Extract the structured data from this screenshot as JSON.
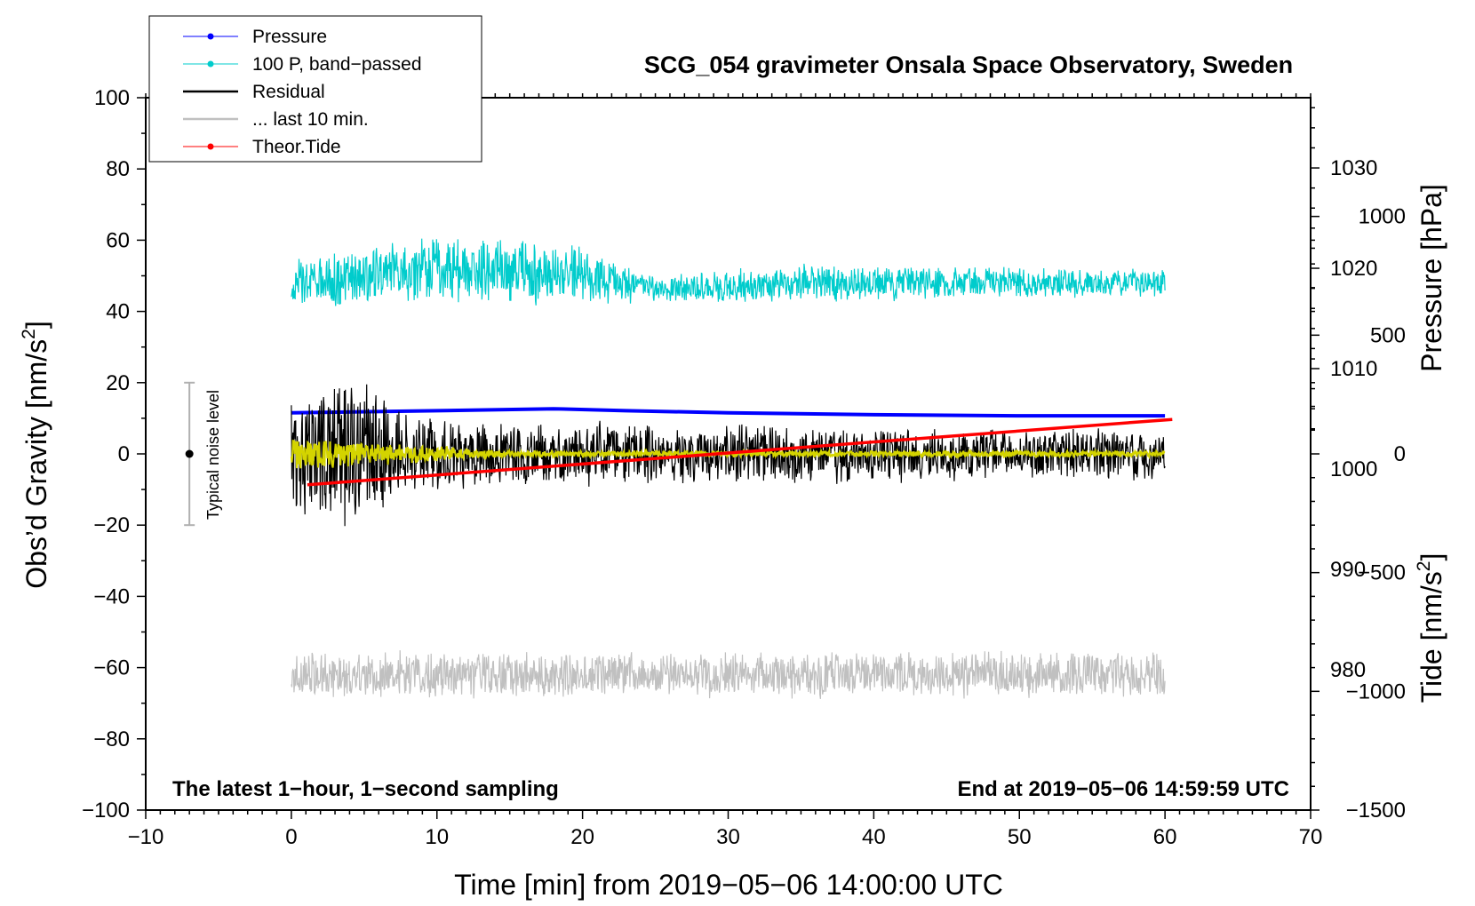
{
  "chart_data": {
    "type": "line",
    "title": "SCG_054 gravimeter Onsala Space Observatory, Sweden",
    "xlabel": "Time [min] from 2019−05−06 14:00:00 UTC",
    "ylabel_left": "Obs’d Gravity [nm/s²]",
    "ylabel_left_parts": {
      "base": "Obs’d Gravity [nm/s",
      "sup": "2",
      "end": "]"
    },
    "ylabel_right_pressure": "Pressure [hPa]",
    "ylabel_right_tide": "Tide [nm/s²]",
    "ylabel_right_tide_parts": {
      "base": "Tide [nm/s",
      "sup": "2",
      "end": "]"
    },
    "xlim": [
      -10,
      70
    ],
    "ylim_left": [
      -100,
      100
    ],
    "ylim_pressure": [
      966,
      1037
    ],
    "ylim_tide": [
      -1500,
      1500
    ],
    "x_ticks": [
      -10,
      0,
      10,
      20,
      30,
      40,
      50,
      60,
      70
    ],
    "x_tick_labels": [
      "−10",
      "0",
      "10",
      "20",
      "30",
      "40",
      "50",
      "60",
      "70"
    ],
    "y_left_ticks": [
      -100,
      -80,
      -60,
      -40,
      -20,
      0,
      20,
      40,
      60,
      80,
      100
    ],
    "y_left_tick_labels": [
      "−100",
      "−80",
      "−60",
      "−40",
      "−20",
      "0",
      "20",
      "40",
      "60",
      "80",
      "100"
    ],
    "pressure_ticks": [
      980,
      990,
      1000,
      1010,
      1020,
      1030
    ],
    "pressure_tick_labels": [
      "980",
      "990",
      "1000",
      "1010",
      "1020",
      "1030"
    ],
    "tide_ticks": [
      -1500,
      -1000,
      -500,
      0,
      500,
      1000
    ],
    "tide_tick_labels": [
      "−1500",
      "−1000",
      "−500",
      "0",
      "500",
      "1000"
    ],
    "annotations": {
      "bottom_left": "The latest 1−hour, 1−second sampling",
      "bottom_right": "End at 2019−05−06 14:59:59 UTC",
      "noise_label": "Typical noise level"
    },
    "noise_bar": {
      "x": -7,
      "center": 0,
      "low": -20,
      "high": 20
    },
    "legend": {
      "position": "top-left",
      "entries": [
        {
          "label": "Pressure",
          "color": "#0000ff",
          "marker": true
        },
        {
          "label": "100 P, band−passed",
          "color": "#00cccc",
          "marker": true
        },
        {
          "label": "Residual",
          "color": "#000000",
          "marker": false
        },
        {
          "label": "... last 10 min.",
          "color": "#c0c0c0",
          "marker": false
        },
        {
          "label": "Theor.Tide",
          "color": "#ff0000",
          "marker": true
        }
      ]
    },
    "series": [
      {
        "name": "Pressure",
        "axis": "pressure",
        "color": "#0000ff",
        "style": "thick line",
        "x": [
          0,
          10,
          18,
          23,
          30,
          40,
          50,
          60
        ],
        "values": [
          1005.6,
          1005.8,
          1006.0,
          1005.8,
          1005.6,
          1005.4,
          1005.3,
          1005.3
        ]
      },
      {
        "name": "100 P, band−passed",
        "axis": "left",
        "color": "#00cccc",
        "style": "noisy band",
        "x": [
          0,
          10,
          20,
          25,
          35,
          45,
          60
        ],
        "center": [
          48,
          52,
          50,
          46,
          48,
          48,
          48
        ],
        "amplitude": [
          8,
          10,
          9,
          4,
          6,
          5,
          4
        ]
      },
      {
        "name": "Residual",
        "axis": "left",
        "color": "#000000",
        "style": "noisy band",
        "x": [
          0,
          4,
          8,
          15,
          30,
          45,
          60
        ],
        "center": [
          0,
          0,
          0,
          0,
          0,
          0,
          0
        ],
        "amplitude": [
          20,
          26,
          12,
          10,
          9,
          8,
          8
        ]
      },
      {
        "name": "Residual (smoothed)",
        "axis": "left",
        "color": "#d4d400",
        "style": "noisy band",
        "x": [
          0,
          4,
          8,
          15,
          60
        ],
        "center": [
          0,
          0,
          0,
          0,
          0
        ],
        "amplitude": [
          5,
          4,
          3,
          1,
          1
        ]
      },
      {
        "name": "... last 10 min.",
        "axis": "left",
        "color": "#c0c0c0",
        "style": "noisy band",
        "x": [
          0,
          60
        ],
        "center": [
          -62,
          -62
        ],
        "amplitude": [
          7,
          7
        ]
      },
      {
        "name": "Theor.Tide",
        "axis": "tide",
        "color": "#ff0000",
        "style": "line",
        "x": [
          1.1,
          60.5
        ],
        "values": [
          -130,
          145
        ]
      }
    ]
  }
}
